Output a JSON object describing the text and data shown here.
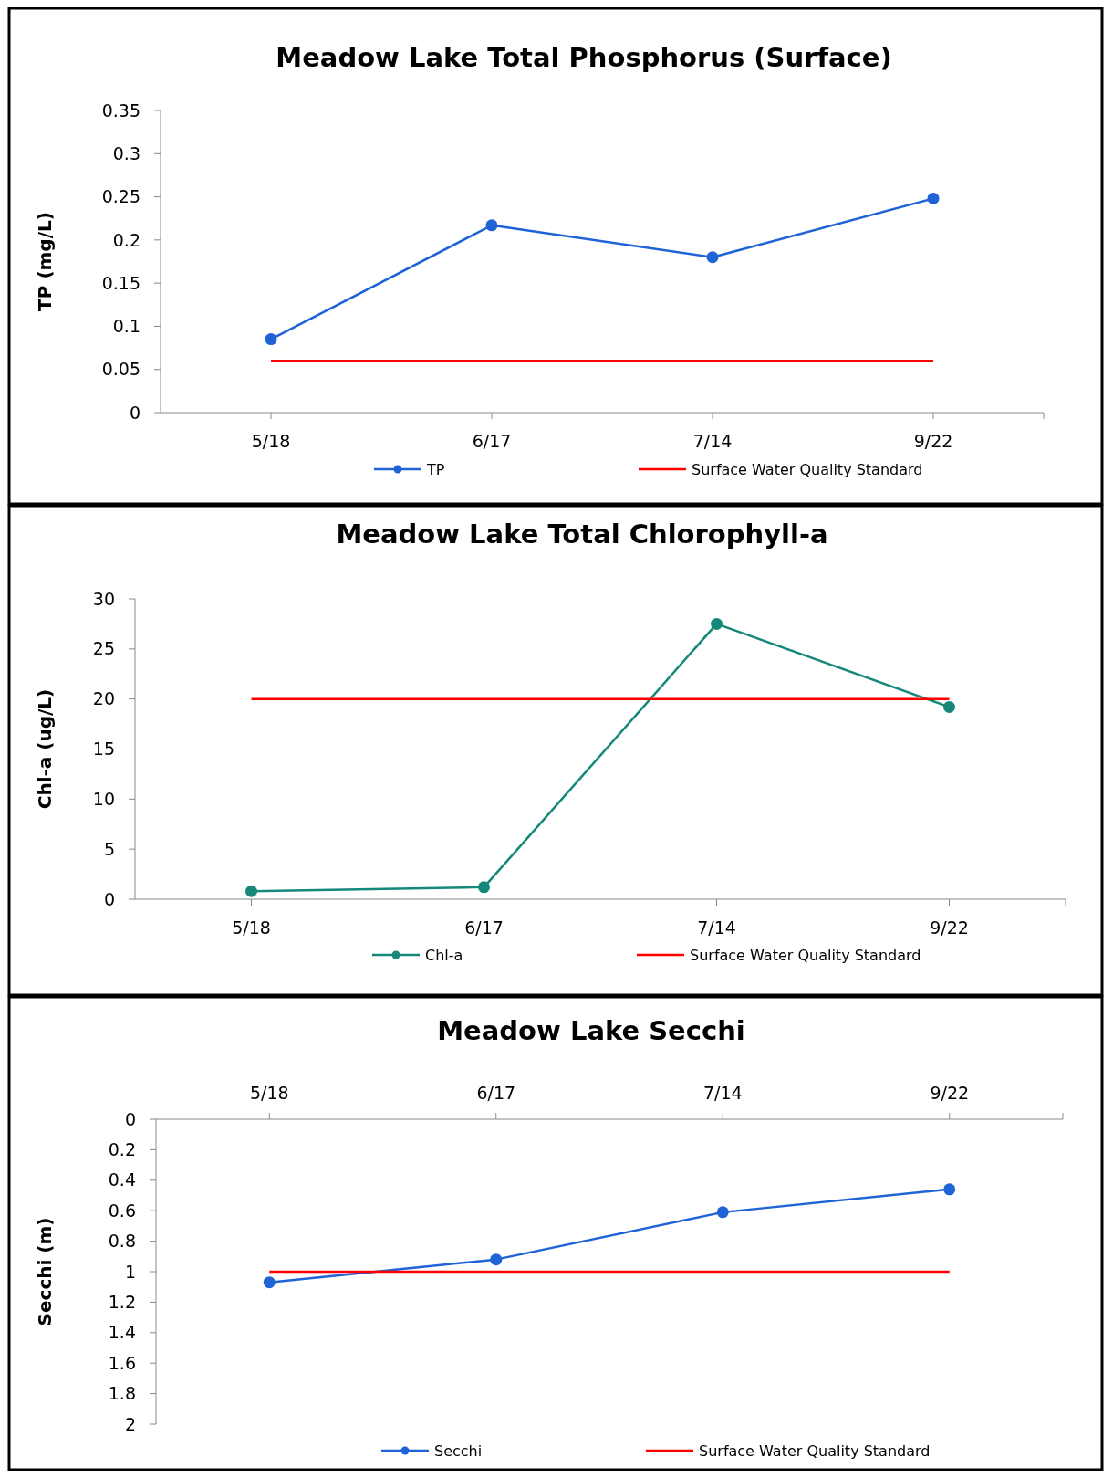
{
  "chart_data": [
    {
      "type": "line",
      "title": "Meadow Lake Total Phosphorus (Surface)",
      "ylabel": "TP (mg/L)",
      "categories": [
        "5/18",
        "6/17",
        "7/14",
        "9/22"
      ],
      "ylim": [
        0,
        0.35
      ],
      "yticks": [
        0,
        0.05,
        0.1,
        0.15,
        0.2,
        0.25,
        0.3,
        0.35
      ],
      "grid": false,
      "legend": "bottom",
      "marker": "circle",
      "series": [
        {
          "name": "TP",
          "color": "#1f63d6",
          "values": [
            0.085,
            0.217,
            0.18,
            0.248
          ]
        },
        {
          "name": "Surface Water Quality Standard",
          "color": "#ff0000",
          "marker": "none",
          "values": [
            0.06,
            0.06,
            0.06,
            0.06
          ]
        }
      ]
    },
    {
      "type": "line",
      "title": "Meadow Lake Total Chlorophyll-a",
      "ylabel": "Chl-a (ug/L)",
      "categories": [
        "5/18",
        "6/17",
        "7/14",
        "9/22"
      ],
      "ylim": [
        0,
        30
      ],
      "yticks": [
        0,
        5,
        10,
        15,
        20,
        25,
        30
      ],
      "grid": false,
      "legend": "bottom",
      "marker": "circle",
      "series": [
        {
          "name": "Chl-a",
          "color": "#16887a",
          "values": [
            0.8,
            1.2,
            27.5,
            19.2
          ]
        },
        {
          "name": "Surface Water Quality Standard",
          "color": "#ff0000",
          "marker": "none",
          "values": [
            20,
            20,
            20,
            20
          ]
        }
      ]
    },
    {
      "type": "line",
      "title": "Meadow Lake Secchi",
      "ylabel": "Secchi (m)",
      "categories": [
        "5/18",
        "6/17",
        "7/14",
        "9/22"
      ],
      "ylim": [
        2,
        0
      ],
      "yticks": [
        0,
        0.2,
        0.4,
        0.6,
        0.8,
        1,
        1.2,
        1.4,
        1.6,
        1.8,
        2
      ],
      "grid": false,
      "legend": "bottom",
      "marker": "circle",
      "series": [
        {
          "name": "Secchi",
          "color": "#1f63d6",
          "values": [
            1.07,
            0.92,
            0.61,
            0.46
          ]
        },
        {
          "name": "Surface Water Quality Standard",
          "color": "#ff0000",
          "marker": "none",
          "values": [
            1,
            1,
            1,
            1
          ]
        }
      ]
    }
  ]
}
